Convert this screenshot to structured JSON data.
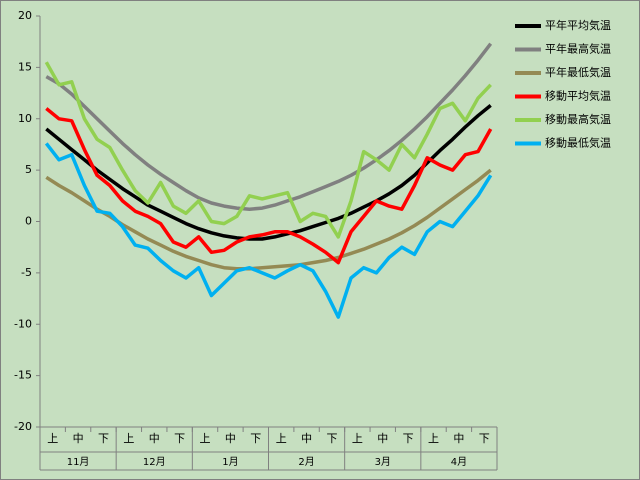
{
  "chart_data": {
    "type": "line",
    "categories": [
      "上",
      null,
      "中",
      null,
      "下",
      null,
      "上",
      null,
      "中",
      null,
      "下",
      null,
      "上",
      null,
      "中",
      null,
      "下",
      null,
      "上",
      null,
      "中",
      null,
      "下",
      null,
      "上",
      null,
      "中",
      null,
      "下",
      null,
      "上",
      null,
      "中",
      null,
      "下",
      null
    ],
    "months": [
      "11月",
      "12月",
      "1月",
      "2月",
      "3月",
      "4月"
    ],
    "ylim": [
      -20,
      20
    ],
    "yticks": [
      -20,
      -15,
      -10,
      -5,
      0,
      5,
      10,
      15,
      20
    ],
    "legend": "right",
    "series": [
      {
        "name": "平年平均気温",
        "color": "#000000",
        "values": [
          9.0,
          8.0,
          7.0,
          6.0,
          5.0,
          4.1,
          3.2,
          2.4,
          1.6,
          1.0,
          0.4,
          -0.2,
          -0.7,
          -1.1,
          -1.4,
          -1.6,
          -1.7,
          -1.7,
          -1.5,
          -1.2,
          -0.9,
          -0.5,
          -0.1,
          0.3,
          0.8,
          1.4,
          2.0,
          2.7,
          3.5,
          4.5,
          5.7,
          6.9,
          8.0,
          9.2,
          10.3,
          11.3
        ]
      },
      {
        "name": "平年最高気温",
        "color": "#808080",
        "values": [
          14.1,
          13.4,
          12.4,
          11.2,
          10.0,
          8.8,
          7.6,
          6.5,
          5.5,
          4.6,
          3.8,
          3.0,
          2.3,
          1.8,
          1.5,
          1.3,
          1.2,
          1.3,
          1.6,
          2.0,
          2.4,
          2.9,
          3.4,
          3.9,
          4.5,
          5.2,
          6.0,
          6.9,
          7.9,
          9.0,
          10.2,
          11.5,
          12.8,
          14.2,
          15.7,
          17.3
        ]
      },
      {
        "name": "平年最低気温",
        "color": "#948a54",
        "values": [
          4.3,
          3.5,
          2.8,
          2.0,
          1.2,
          0.5,
          -0.3,
          -1.0,
          -1.7,
          -2.3,
          -2.9,
          -3.4,
          -3.8,
          -4.2,
          -4.5,
          -4.6,
          -4.6,
          -4.5,
          -4.4,
          -4.3,
          -4.2,
          -4.0,
          -3.8,
          -3.5,
          -3.1,
          -2.7,
          -2.2,
          -1.7,
          -1.1,
          -0.4,
          0.4,
          1.3,
          2.2,
          3.1,
          4.0,
          5.0
        ]
      },
      {
        "name": "移動平均気温",
        "color": "#ff0000",
        "values": [
          11.0,
          10.0,
          9.8,
          7.0,
          4.5,
          3.5,
          2.0,
          1.0,
          0.5,
          -0.2,
          -2.0,
          -2.5,
          -1.5,
          -3.0,
          -2.8,
          -2.0,
          -1.5,
          -1.3,
          -1.0,
          -1.0,
          -1.5,
          -2.2,
          -3.0,
          -4.0,
          -1.0,
          0.5,
          2.0,
          1.5,
          1.2,
          3.5,
          6.2,
          5.5,
          5.0,
          6.5,
          6.8,
          9.0
        ]
      },
      {
        "name": "移動最高気温",
        "color": "#92d050",
        "values": [
          15.5,
          13.3,
          13.6,
          10.0,
          8.0,
          7.2,
          5.0,
          3.0,
          1.8,
          3.8,
          1.5,
          0.8,
          2.0,
          0.0,
          -0.2,
          0.5,
          2.5,
          2.2,
          2.5,
          2.8,
          0.0,
          0.8,
          0.5,
          -1.5,
          2.0,
          6.8,
          6.0,
          5.0,
          7.5,
          6.2,
          8.5,
          11.0,
          11.5,
          9.8,
          12.0,
          13.3
        ]
      },
      {
        "name": "移動最低気温",
        "color": "#00b0f0",
        "values": [
          7.6,
          6.0,
          6.5,
          3.5,
          1.0,
          0.8,
          -0.5,
          -2.3,
          -2.6,
          -3.8,
          -4.8,
          -5.5,
          -4.5,
          -7.2,
          -6.0,
          -4.8,
          -4.5,
          -5.0,
          -5.5,
          -4.8,
          -4.2,
          -4.8,
          -6.8,
          -9.3,
          -5.5,
          -4.5,
          -5.0,
          -3.5,
          -2.5,
          -3.2,
          -1.0,
          0.0,
          -0.5,
          1.0,
          2.5,
          4.5
        ]
      }
    ]
  }
}
